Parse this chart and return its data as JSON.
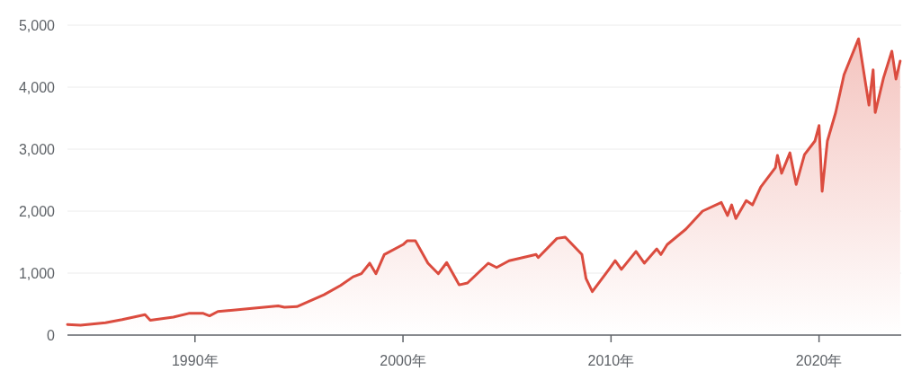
{
  "chart_data": {
    "type": "area",
    "grid": "y",
    "xlim": [
      1983.87,
      2023.95
    ],
    "ylim": [
      0,
      5000
    ],
    "xticks": [
      {
        "value": 1990,
        "label": "1990年"
      },
      {
        "value": 2000,
        "label": "2000年"
      },
      {
        "value": 2010,
        "label": "2010年"
      },
      {
        "value": 2020,
        "label": "2020年"
      }
    ],
    "yticks": [
      0,
      {
        "value": 1000,
        "label": "1,000"
      },
      {
        "value": 2000,
        "label": "2,000"
      },
      {
        "value": 3000,
        "label": "3,000"
      },
      {
        "value": 4000,
        "label": "4,000"
      },
      {
        "value": 5000,
        "label": "5,000"
      }
    ],
    "x": [
      1983.87,
      1984.5,
      1985.7,
      1986.5,
      1987.6,
      1987.85,
      1988.96,
      1989.7,
      1990.4,
      1990.7,
      1991.1,
      1992.4,
      1994.0,
      1994.3,
      1994.9,
      1996.2,
      1997.0,
      1997.6,
      1998.0,
      1998.4,
      1998.7,
      1999.1,
      2000.0,
      2000.2,
      2000.6,
      2001.2,
      2001.7,
      2002.1,
      2002.7,
      2003.1,
      2004.1,
      2004.5,
      2005.1,
      2006.4,
      2006.5,
      2007.4,
      2007.8,
      2008.6,
      2008.8,
      2009.1,
      2009.9,
      2010.2,
      2010.5,
      2011.2,
      2011.6,
      2012.2,
      2012.4,
      2012.7,
      2013.6,
      2014.4,
      2015.3,
      2015.6,
      2015.8,
      2016.0,
      2016.5,
      2016.8,
      2017.2,
      2017.9,
      2018.0,
      2018.2,
      2018.6,
      2018.9,
      2019.3,
      2019.8,
      2020.0,
      2020.15,
      2020.4,
      2020.8,
      2021.2,
      2021.9,
      2022.4,
      2022.6,
      2022.7,
      2023.1,
      2023.5,
      2023.7,
      2023.9
    ],
    "series": [
      {
        "color": "#db4c3f",
        "values": [
          170,
          160,
          200,
          250,
          330,
          240,
          290,
          350,
          350,
          310,
          380,
          420,
          470,
          450,
          460,
          650,
          800,
          940,
          990,
          1160,
          990,
          1300,
          1460,
          1520,
          1520,
          1160,
          990,
          1170,
          810,
          840,
          1160,
          1090,
          1200,
          1300,
          1250,
          1560,
          1580,
          1300,
          910,
          700,
          1060,
          1200,
          1060,
          1350,
          1160,
          1390,
          1300,
          1460,
          1710,
          2000,
          2140,
          1930,
          2100,
          1880,
          2170,
          2100,
          2390,
          2700,
          2900,
          2610,
          2940,
          2430,
          2910,
          3130,
          3380,
          2320,
          3130,
          3590,
          4200,
          4780,
          3710,
          4280,
          3590,
          4150,
          4580,
          4130,
          4420
        ]
      }
    ]
  }
}
